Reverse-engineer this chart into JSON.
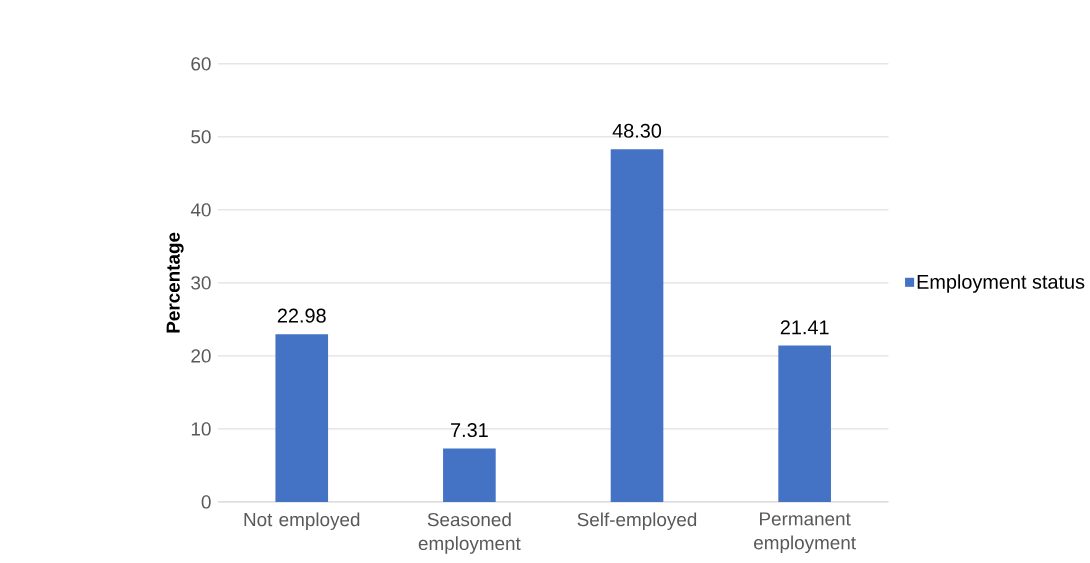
{
  "chart_data": {
    "type": "bar",
    "ylabel": "Percentage",
    "categories": [
      "Not employed",
      "Seasoned employment",
      "Self-employed",
      "Permanent employment"
    ],
    "series": [
      {
        "name": "Employment status",
        "color": "#4472c4",
        "values": [
          22.98,
          7.31,
          48.3,
          21.41
        ],
        "value_labels": [
          "22.98",
          "7.31",
          "48.30",
          "21.41"
        ]
      }
    ],
    "ylim": [
      0,
      60
    ],
    "yticks": [
      0,
      10,
      20,
      30,
      40,
      50,
      60
    ],
    "grid": "y",
    "legend": "right"
  }
}
